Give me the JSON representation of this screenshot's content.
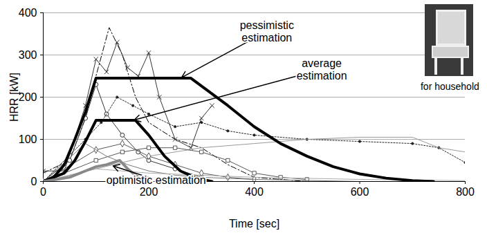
{
  "chart_data": {
    "type": "line",
    "x_label": "Time [sec]",
    "y_label": "HRR [kW]",
    "xlim": [
      0,
      800
    ],
    "xticks": [
      0,
      200,
      400,
      600,
      800
    ],
    "ylim": [
      0,
      400
    ],
    "yticks": [
      0,
      100,
      200,
      300,
      400
    ],
    "grid": true,
    "series": [
      {
        "color": "#000000",
        "line_style": "dashdot",
        "marker": "none",
        "x": [
          0,
          50,
          80,
          100,
          125,
          150,
          175,
          200,
          250,
          300,
          350,
          400,
          500
        ],
        "values": [
          20,
          50,
          150,
          250,
          365,
          300,
          200,
          140,
          100,
          80,
          40,
          10,
          0
        ]
      },
      {
        "color": "#333333",
        "line_style": "solid",
        "marker": "x",
        "x": [
          0,
          40,
          80,
          100,
          120,
          140,
          160,
          180,
          200,
          220,
          250,
          280,
          300,
          320
        ],
        "values": [
          25,
          25,
          180,
          290,
          260,
          330,
          270,
          250,
          305,
          200,
          100,
          80,
          150,
          180
        ]
      },
      {
        "color": "#333333",
        "line_style": "solid",
        "marker": "circle",
        "x": [
          0,
          50,
          80,
          100,
          120,
          150,
          180,
          200,
          250,
          300
        ],
        "values": [
          0,
          50,
          150,
          230,
          160,
          110,
          70,
          50,
          30,
          10
        ]
      },
      {
        "color": "#222222",
        "line_style": "dotted",
        "marker": "dot",
        "x": [
          0,
          80,
          110,
          140,
          170,
          200,
          250,
          300,
          350,
          400,
          500,
          600,
          700,
          750,
          800
        ],
        "values": [
          0,
          100,
          140,
          200,
          180,
          160,
          130,
          140,
          120,
          110,
          100,
          95,
          90,
          80,
          45
        ]
      },
      {
        "color": "#999999",
        "line_style": "solid",
        "marker": "none",
        "x": [
          0,
          200,
          300,
          400,
          500,
          600,
          700,
          750,
          800
        ],
        "values": [
          0,
          60,
          80,
          90,
          100,
          105,
          105,
          80,
          70
        ]
      },
      {
        "color": "#555555",
        "line_style": "solid",
        "marker": "square",
        "x": [
          0,
          100,
          150,
          200,
          250,
          300,
          350,
          400,
          450,
          500
        ],
        "values": [
          0,
          50,
          70,
          80,
          80,
          70,
          50,
          20,
          10,
          5
        ]
      },
      {
        "color": "#555555",
        "line_style": "solid",
        "marker": "diamond",
        "x": [
          0,
          100,
          150,
          200,
          250,
          300,
          350,
          400
        ],
        "values": [
          0,
          75,
          90,
          60,
          40,
          20,
          10,
          5
        ]
      },
      {
        "color": "#777777",
        "line_style": "solid",
        "marker": "none",
        "x": [
          0,
          80,
          120,
          160,
          200,
          250,
          300,
          400,
          600
        ],
        "values": [
          0,
          90,
          60,
          40,
          25,
          15,
          10,
          5,
          0
        ]
      },
      {
        "color": "#aaaaaa",
        "line_style": "solid",
        "marker": "none",
        "x": [
          0,
          100,
          200,
          400,
          600,
          800
        ],
        "values": [
          0,
          30,
          20,
          10,
          5,
          2
        ]
      },
      {
        "name": "pessimistic estimation",
        "color": "#000000",
        "line_style": "thick",
        "marker": "none",
        "x": [
          0,
          20,
          40,
          60,
          80,
          100,
          280,
          350,
          400,
          450,
          500,
          550,
          600,
          650,
          700,
          740
        ],
        "values": [
          0,
          10,
          40,
          100,
          165,
          245,
          245,
          180,
          130,
          90,
          60,
          35,
          18,
          8,
          2,
          0
        ]
      },
      {
        "name": "average estimation",
        "color": "#000000",
        "line_style": "thick",
        "marker": "none",
        "x": [
          0,
          40,
          60,
          80,
          100,
          175,
          200,
          230,
          260,
          290,
          320
        ],
        "values": [
          0,
          20,
          50,
          95,
          145,
          145,
          110,
          60,
          25,
          8,
          0
        ]
      },
      {
        "name": "optimistic estimation",
        "color": "#888888",
        "line_style": "thick",
        "marker": "none",
        "x": [
          0,
          50,
          80,
          100,
          120,
          145,
          160,
          180,
          200
        ],
        "values": [
          0,
          10,
          25,
          35,
          40,
          50,
          30,
          10,
          0
        ]
      }
    ],
    "annotations": [
      {
        "text": "pessimistic\nestimation",
        "x": 424,
        "y": 356,
        "arrow_to": [
          260,
          245
        ]
      },
      {
        "text": "average\nestimation",
        "x": 528,
        "y": 266,
        "arrow_to": [
          170,
          145
        ]
      },
      {
        "text": "optimistic estimation",
        "x": 214,
        "y": 4,
        "arrow_to": [
          130,
          38
        ]
      },
      {
        "text": "for household",
        "x": 771,
        "y": 225
      }
    ]
  }
}
